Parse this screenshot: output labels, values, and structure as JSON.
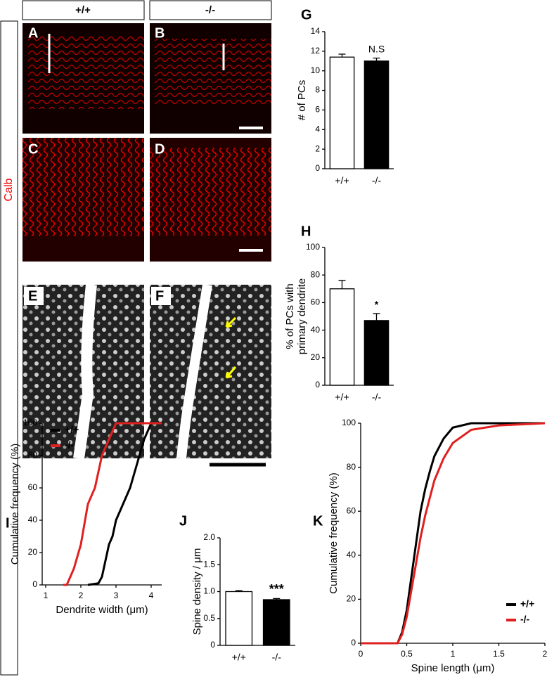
{
  "genotype_headers": [
    "+/+",
    "-/-"
  ],
  "stain_label": "Calb",
  "image_panels": [
    "A",
    "B",
    "C",
    "D",
    "E",
    "F"
  ],
  "chart_data": [
    {
      "type": "bar",
      "panel": "G",
      "ylabel": [
        "# of PCs"
      ],
      "categories": [
        "+/+",
        "-/-"
      ],
      "values": [
        11.4,
        11.0
      ],
      "errors": [
        0.3,
        0.3
      ],
      "colors": [
        "#ffffff",
        "#000000"
      ],
      "annotation": "N.S",
      "ylim": [
        0,
        14
      ],
      "yticks": [
        0,
        2,
        4,
        6,
        8,
        10,
        12,
        14
      ]
    },
    {
      "type": "bar",
      "panel": "H",
      "ylabel": [
        "% of PCs with",
        "primary dendrite"
      ],
      "categories": [
        "+/+",
        "-/-"
      ],
      "values": [
        70,
        47
      ],
      "errors": [
        6,
        5
      ],
      "colors": [
        "#ffffff",
        "#000000"
      ],
      "annotation": "*",
      "ylim": [
        0,
        100
      ],
      "yticks": [
        0,
        20,
        40,
        60,
        80,
        100
      ]
    },
    {
      "type": "line",
      "panel": "I",
      "ylabel": "Cumulative frequency  (%)",
      "xlabel": "Dendrite width (μm)",
      "xlim": [
        0.9,
        4.3
      ],
      "xticks": [
        1,
        2,
        3,
        4
      ],
      "ylim": [
        0,
        100
      ],
      "yticks": [
        0,
        20,
        40,
        60,
        80,
        100
      ],
      "legend": "upper left",
      "series": [
        {
          "name": "+/+",
          "color": "#000000",
          "x": [
            2.2,
            2.5,
            2.6,
            2.8,
            2.9,
            3.0,
            3.2,
            3.4,
            3.6,
            3.8,
            4.0,
            4.3
          ],
          "values": [
            0,
            1,
            5,
            25,
            30,
            40,
            50,
            60,
            75,
            90,
            100,
            100
          ]
        },
        {
          "name": "-/-",
          "color": "#e02020",
          "x": [
            1.5,
            1.6,
            1.8,
            2.0,
            2.2,
            2.4,
            2.6,
            2.8,
            3.0,
            4.3
          ],
          "values": [
            0,
            0,
            10,
            25,
            50,
            60,
            80,
            90,
            100,
            100
          ]
        }
      ]
    },
    {
      "type": "bar",
      "panel": "J",
      "ylabel": [
        "Spine density / μm"
      ],
      "categories": [
        "+/+",
        "-/-"
      ],
      "values": [
        1.0,
        0.85
      ],
      "errors": [
        0.02,
        0.02
      ],
      "colors": [
        "#ffffff",
        "#000000"
      ],
      "annotation": "***",
      "ylim": [
        0,
        2
      ],
      "yticks": [
        0,
        0.5,
        {
          "value": 1,
          "label": "1.0"
        },
        1.5,
        {
          "value": 2,
          "label": "2.0"
        }
      ]
    },
    {
      "type": "line",
      "panel": "K",
      "ylabel": "Cumulative frequency  (%)",
      "xlabel": "Spine length (μm)",
      "xlim": [
        0,
        2
      ],
      "xticks": [
        0,
        0.5,
        1,
        1.5,
        2
      ],
      "ylim": [
        0,
        100
      ],
      "yticks": [
        0,
        20,
        40,
        60,
        80,
        100
      ],
      "legend": "lower right",
      "series": [
        {
          "name": "+/+",
          "color": "#000000",
          "x": [
            0,
            0.4,
            0.45,
            0.5,
            0.55,
            0.6,
            0.65,
            0.7,
            0.75,
            0.8,
            0.9,
            1.0,
            1.2,
            2.0
          ],
          "values": [
            0,
            0,
            5,
            15,
            30,
            45,
            60,
            70,
            78,
            85,
            93,
            98,
            100,
            100
          ]
        },
        {
          "name": "-/-",
          "color": "#e02020",
          "x": [
            0,
            0.4,
            0.45,
            0.5,
            0.55,
            0.6,
            0.65,
            0.7,
            0.75,
            0.8,
            0.9,
            1.0,
            1.2,
            1.5,
            2.0
          ],
          "values": [
            0,
            0,
            4,
            12,
            24,
            36,
            48,
            58,
            66,
            74,
            84,
            91,
            97,
            99,
            100
          ]
        }
      ]
    }
  ]
}
